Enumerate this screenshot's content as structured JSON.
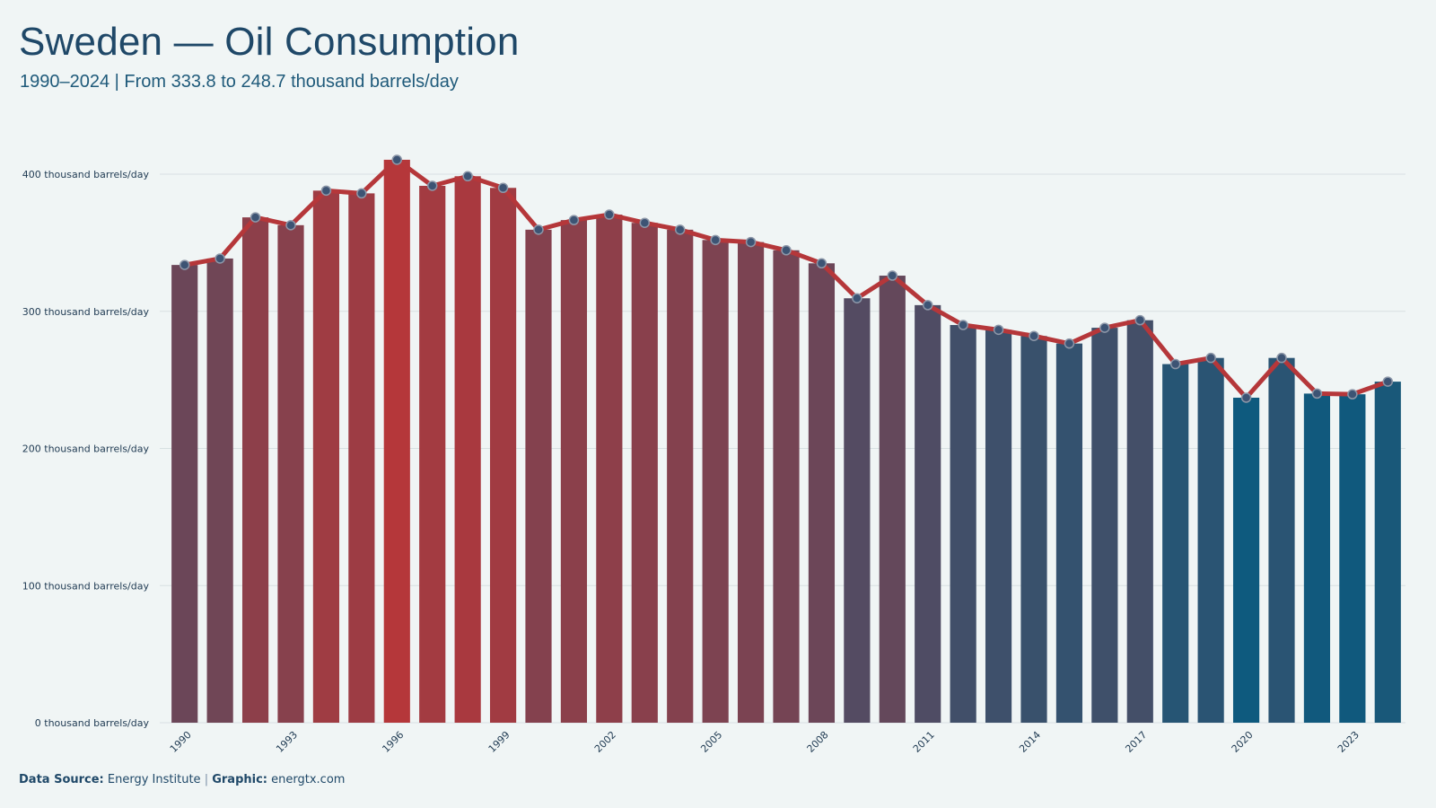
{
  "title": "Sweden — Oil Consumption",
  "subtitle": "1990–2024 | From 333.8 to 248.7 thousand barrels/day",
  "footer": {
    "source_label": "Data Source:",
    "source_value": "Energy Institute",
    "separator": "|",
    "graphic_label": "Graphic:",
    "graphic_value": "energtx.com"
  },
  "colors": {
    "high": "#b5373a",
    "low": "#0e5a7e",
    "line": "#b5373a",
    "marker": "#3d5474",
    "grid": "#d7e0e2"
  },
  "chart_data": {
    "type": "bar",
    "x": [
      1990,
      1991,
      1992,
      1993,
      1994,
      1995,
      1996,
      1997,
      1998,
      1999,
      2000,
      2001,
      2002,
      2003,
      2004,
      2005,
      2006,
      2007,
      2008,
      2009,
      2010,
      2011,
      2012,
      2013,
      2014,
      2015,
      2016,
      2017,
      2018,
      2019,
      2020,
      2021,
      2022,
      2023,
      2024
    ],
    "values": [
      333.8,
      338.5,
      368.5,
      362.8,
      388,
      386,
      410.5,
      391.5,
      398.5,
      390,
      359.5,
      366.5,
      370.5,
      364.5,
      359.5,
      352,
      350.5,
      344.5,
      335,
      309.5,
      326,
      304.5,
      290,
      286.5,
      282,
      276.5,
      288,
      293.5,
      261.5,
      266,
      237,
      266,
      240,
      239.5,
      248.7
    ],
    "line_overlay": true,
    "ylim": [
      0,
      400
    ],
    "yticks": [
      0,
      100,
      200,
      300,
      400
    ],
    "ytick_labels": [
      "0 thousand barrels/day",
      "100 thousand barrels/day",
      "200 thousand barrels/day",
      "300 thousand barrels/day",
      "400 thousand barrels/day"
    ],
    "xtick_labels": [
      "1990",
      "1993",
      "1996",
      "1999",
      "2002",
      "2005",
      "2008",
      "2011",
      "2014",
      "2017",
      "2020",
      "2023"
    ],
    "grid": true
  }
}
